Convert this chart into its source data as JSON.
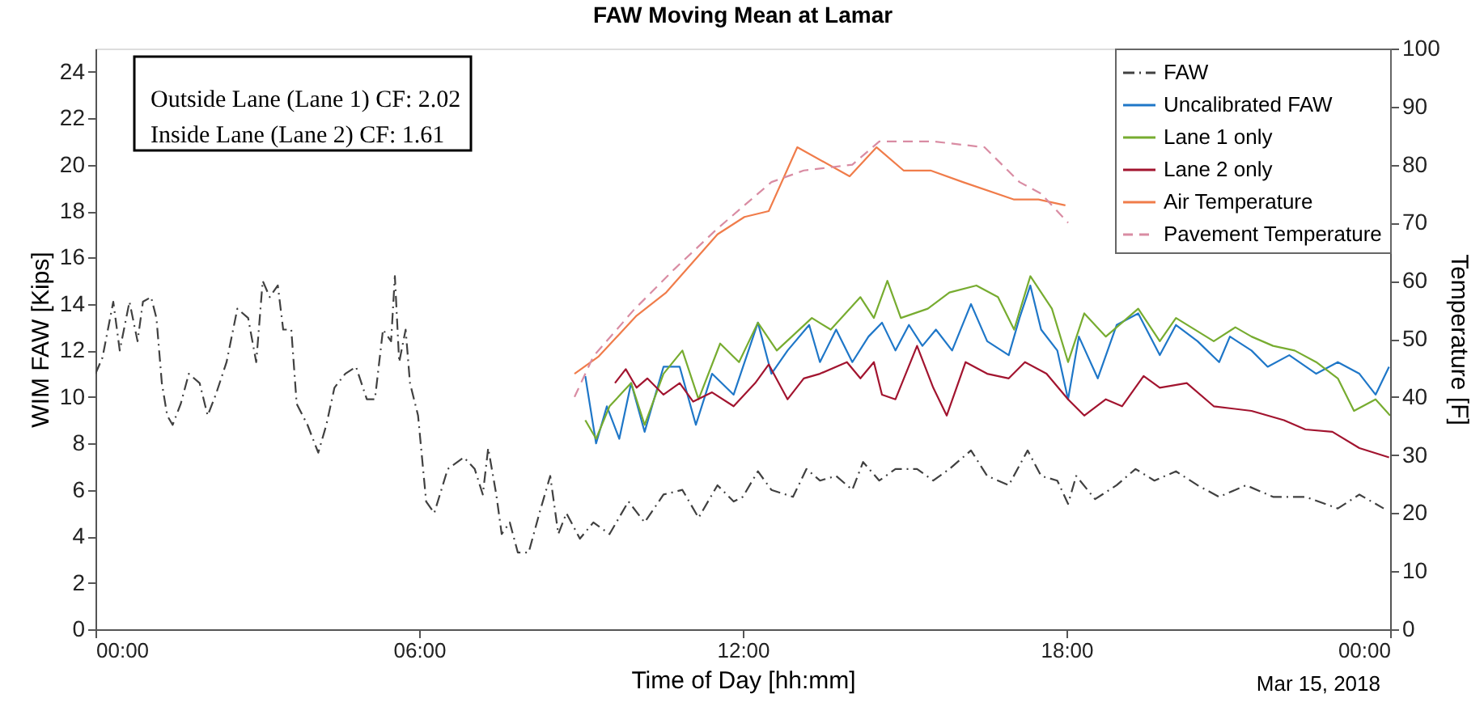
{
  "chart_data": {
    "type": "line",
    "title": "FAW Moving Mean at Lamar",
    "xlabel": "Time of Day [hh:mm]",
    "ylabel": "WIM FAW [Kips]",
    "y2label": "Temperature [F]",
    "annotations": [
      "Outside Lane (Lane 1) CF: 2.02",
      "Inside Lane (Lane 2) CF: 1.61",
      "Mar 15, 2018"
    ],
    "xlim": [
      0,
      24
    ],
    "xticks": [
      {
        "value": 0,
        "label": "00:00"
      },
      {
        "value": 6,
        "label": "06:00"
      },
      {
        "value": 12,
        "label": "12:00"
      },
      {
        "value": 18,
        "label": "18:00"
      },
      {
        "value": 24,
        "label": "00:00"
      }
    ],
    "ylim": [
      0,
      25
    ],
    "yticks": [
      0,
      2,
      4,
      6,
      8,
      10,
      12,
      14,
      16,
      18,
      20,
      22,
      24
    ],
    "y2lim": [
      0,
      100
    ],
    "y2ticks": [
      0,
      10,
      20,
      30,
      40,
      50,
      60,
      70,
      80,
      90,
      100
    ],
    "legend": "top right",
    "series": [
      {
        "name": "FAW",
        "color": "#404040",
        "line_style": "dashdot",
        "x": [
          0,
          0.13,
          0.33,
          0.45,
          0.63,
          0.78,
          0.88,
          1.03,
          1.13,
          1.23,
          1.33,
          1.43,
          1.58,
          1.73,
          1.93,
          2.08,
          2.23,
          2.43,
          2.63,
          2.83,
          2.98,
          3.1,
          3.23,
          3.38,
          3.48,
          3.63,
          3.73,
          3.93,
          4.13,
          4.28,
          4.43,
          4.63,
          4.83,
          5.03,
          5.18,
          5.33,
          5.48,
          5.55,
          5.63,
          5.75,
          5.83,
          5.98,
          6.13,
          6.28,
          6.53,
          6.83,
          7.03,
          7.18,
          7.28,
          7.43,
          7.53,
          7.68,
          7.83,
          8.03,
          8.23,
          8.43,
          8.58,
          8.73,
          8.98,
          9.23,
          9.53,
          9.88,
          10.18,
          10.53,
          10.88,
          11.18,
          11.53,
          11.83,
          12.0,
          12.28,
          12.53,
          12.93,
          13.18,
          13.43,
          13.73,
          14.03,
          14.23,
          14.53,
          14.83,
          15.23,
          15.53,
          15.83,
          16.23,
          16.53,
          16.93,
          17.28,
          17.53,
          17.83,
          18.03,
          18.18,
          18.53,
          18.93,
          19.28,
          19.63,
          20.03,
          20.43,
          20.83,
          21.33,
          21.83,
          22.43,
          23.03,
          23.43,
          23.88
        ],
        "values": [
          11.0,
          11.7,
          14.1,
          12.0,
          14.1,
          12.4,
          14.1,
          14.3,
          13.4,
          10.6,
          9.2,
          8.8,
          9.7,
          11.0,
          10.6,
          9.2,
          10.1,
          11.5,
          13.8,
          13.4,
          11.5,
          15.0,
          14.3,
          14.8,
          12.9,
          12.9,
          9.7,
          8.8,
          7.6,
          8.8,
          10.4,
          11.0,
          11.3,
          9.9,
          9.9,
          12.9,
          12.4,
          15.2,
          11.5,
          12.9,
          10.6,
          9.2,
          5.5,
          5.0,
          6.9,
          7.4,
          6.9,
          5.8,
          7.8,
          5.8,
          4.1,
          4.6,
          3.3,
          3.3,
          5.0,
          6.6,
          4.1,
          5.0,
          3.9,
          4.6,
          4.1,
          5.5,
          4.6,
          5.8,
          6.0,
          4.8,
          6.2,
          5.5,
          5.7,
          6.8,
          6.0,
          5.7,
          6.9,
          6.4,
          6.6,
          6.0,
          7.2,
          6.4,
          6.9,
          6.9,
          6.4,
          6.9,
          7.7,
          6.6,
          6.2,
          7.7,
          6.6,
          6.4,
          5.4,
          6.6,
          5.6,
          6.2,
          6.9,
          6.4,
          6.8,
          6.2,
          5.7,
          6.2,
          5.7,
          5.7,
          5.2,
          5.8,
          5.2
        ]
      },
      {
        "name": "Uncalibrated FAW",
        "color": "#1f77c8",
        "line_style": "solid",
        "x": [
          9.08,
          9.28,
          9.48,
          9.71,
          9.93,
          10.18,
          10.53,
          10.83,
          11.13,
          11.43,
          11.83,
          12.28,
          12.53,
          12.83,
          13.23,
          13.43,
          13.73,
          14.03,
          14.33,
          14.58,
          14.83,
          15.08,
          15.33,
          15.58,
          15.88,
          16.23,
          16.53,
          16.93,
          17.13,
          17.33,
          17.53,
          17.83,
          18.03,
          18.23,
          18.58,
          18.93,
          19.33,
          19.73,
          20.03,
          20.43,
          20.83,
          21.03,
          21.43,
          21.73,
          22.13,
          22.63,
          23.03,
          23.43,
          23.73,
          23.98
        ],
        "values": [
          10.9,
          8.0,
          9.6,
          8.2,
          10.6,
          8.5,
          11.3,
          11.3,
          8.8,
          11.0,
          10.1,
          13.2,
          11.0,
          12.0,
          13.1,
          11.5,
          12.9,
          11.5,
          12.6,
          13.2,
          12.0,
          13.1,
          12.2,
          12.9,
          12.0,
          14.0,
          12.4,
          11.8,
          13.4,
          14.8,
          12.9,
          12.0,
          9.9,
          12.6,
          10.8,
          13.1,
          13.6,
          11.8,
          13.1,
          12.4,
          11.5,
          12.6,
          12.0,
          11.3,
          11.8,
          11.0,
          11.5,
          11.0,
          10.1,
          11.3
        ]
      },
      {
        "name": "Lane 1 only",
        "color": "#77ac30",
        "line_style": "solid",
        "x": [
          9.08,
          9.28,
          9.53,
          9.93,
          10.18,
          10.53,
          10.88,
          11.18,
          11.58,
          11.93,
          12.28,
          12.63,
          13.28,
          13.63,
          14.18,
          14.43,
          14.68,
          14.93,
          15.43,
          15.83,
          16.33,
          16.73,
          17.03,
          17.33,
          17.73,
          18.03,
          18.33,
          18.73,
          19.33,
          19.73,
          20.03,
          20.73,
          21.13,
          21.43,
          21.83,
          22.23,
          22.63,
          23.03,
          23.33,
          23.73,
          24.0
        ],
        "values": [
          9.0,
          8.2,
          9.6,
          10.6,
          8.8,
          11.0,
          12.0,
          9.9,
          12.3,
          11.5,
          13.2,
          12.0,
          13.4,
          12.9,
          14.3,
          13.4,
          15.0,
          13.4,
          13.8,
          14.5,
          14.8,
          14.3,
          12.9,
          15.2,
          13.8,
          11.5,
          13.6,
          12.6,
          13.8,
          12.4,
          13.4,
          12.4,
          13.0,
          12.6,
          12.2,
          12.0,
          11.5,
          10.8,
          9.4,
          9.9,
          9.2
        ]
      },
      {
        "name": "Lane 2 only",
        "color": "#a2142f",
        "line_style": "solid",
        "x": [
          9.63,
          9.83,
          10.03,
          10.23,
          10.53,
          10.83,
          11.08,
          11.43,
          11.83,
          12.23,
          12.48,
          12.83,
          13.13,
          13.43,
          13.93,
          14.18,
          14.43,
          14.58,
          14.83,
          15.23,
          15.53,
          15.78,
          16.13,
          16.53,
          16.93,
          17.23,
          17.63,
          18.03,
          18.33,
          18.73,
          19.03,
          19.43,
          19.73,
          20.23,
          20.73,
          21.43,
          22.03,
          22.43,
          22.93,
          23.43,
          23.98
        ],
        "values": [
          10.6,
          11.2,
          10.4,
          10.8,
          10.1,
          10.6,
          9.8,
          10.2,
          9.6,
          10.6,
          11.4,
          9.9,
          10.8,
          11.0,
          11.5,
          10.8,
          11.5,
          10.1,
          9.9,
          12.2,
          10.4,
          9.2,
          11.5,
          11.0,
          10.8,
          11.5,
          11.0,
          9.9,
          9.2,
          9.9,
          9.6,
          10.9,
          10.4,
          10.6,
          9.6,
          9.4,
          9.0,
          8.6,
          8.5,
          7.8,
          7.4
        ]
      },
      {
        "name": "Air Temperature",
        "color": "#f07c4a",
        "line_style": "solid",
        "axis": "y2",
        "x": [
          8.88,
          9.33,
          10.03,
          10.58,
          11.53,
          12.03,
          12.48,
          13.01,
          13.98,
          14.48,
          14.98,
          15.48,
          16.08,
          17.03,
          17.48,
          17.98
        ],
        "values": [
          44,
          47,
          54,
          58,
          68,
          71,
          72,
          83,
          78,
          83,
          79,
          79,
          77,
          74,
          74,
          73
        ]
      },
      {
        "name": "Pavement Temperature",
        "color": "#d98ca3",
        "line_style": "dashed",
        "axis": "y2",
        "x": [
          8.88,
          9.23,
          9.98,
          10.73,
          11.53,
          12.53,
          13.13,
          14.03,
          14.53,
          15.53,
          16.48,
          17.13,
          17.53,
          18.03
        ],
        "values": [
          40,
          47,
          55,
          62,
          69,
          77,
          79,
          80,
          84,
          84,
          83,
          77,
          75,
          70
        ]
      }
    ]
  }
}
